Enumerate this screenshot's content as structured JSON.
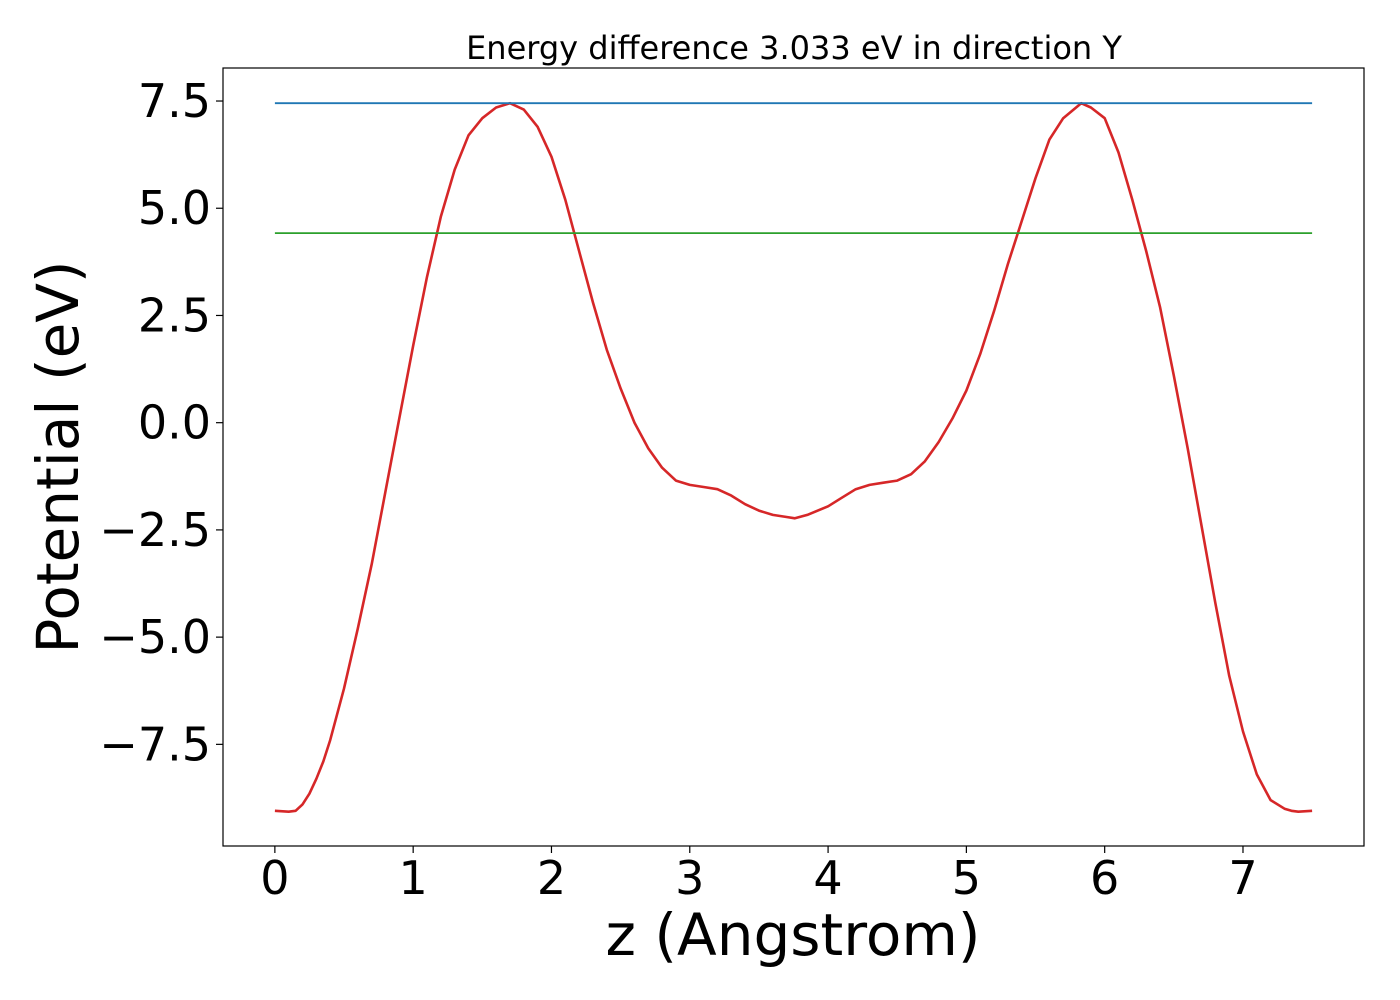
{
  "chart_data": {
    "type": "line",
    "title": "Energy difference 3.033 eV in direction Y",
    "xlabel": "z (Angstrom)",
    "ylabel": "Potential (eV)",
    "xlim": [
      -0.375,
      7.875
    ],
    "ylim": [
      -9.87,
      8.27
    ],
    "xticks": [
      {
        "value": 0,
        "label": "0"
      },
      {
        "value": 1,
        "label": "1"
      },
      {
        "value": 2,
        "label": "2"
      },
      {
        "value": 3,
        "label": "3"
      },
      {
        "value": 4,
        "label": "4"
      },
      {
        "value": 5,
        "label": "5"
      },
      {
        "value": 6,
        "label": "6"
      },
      {
        "value": 7,
        "label": "7"
      }
    ],
    "yticks": [
      {
        "value": -7.5,
        "label": "−7.5"
      },
      {
        "value": -5.0,
        "label": "−5.0"
      },
      {
        "value": -2.5,
        "label": "−2.5"
      },
      {
        "value": 0.0,
        "label": "0.0"
      },
      {
        "value": 2.5,
        "label": "2.5"
      },
      {
        "value": 5.0,
        "label": "5.0"
      },
      {
        "value": 7.5,
        "label": "7.5"
      }
    ],
    "grid": false,
    "legend": "none",
    "series": [
      {
        "color": "#d62728",
        "x": [
          0.0,
          0.1,
          0.15,
          0.2,
          0.25,
          0.3,
          0.35,
          0.4,
          0.45,
          0.5,
          0.55,
          0.6,
          0.7,
          0.8,
          0.9,
          1.0,
          1.1,
          1.2,
          1.3,
          1.4,
          1.5,
          1.6,
          1.7,
          1.8,
          1.9,
          2.0,
          2.1,
          2.2,
          2.3,
          2.4,
          2.5,
          2.6,
          2.7,
          2.8,
          2.9,
          3.0,
          3.1,
          3.2,
          3.3,
          3.4,
          3.5,
          3.6,
          3.7,
          3.76,
          3.85,
          4.0,
          4.1,
          4.2,
          4.3,
          4.4,
          4.5,
          4.6,
          4.7,
          4.8,
          4.9,
          5.0,
          5.1,
          5.2,
          5.3,
          5.4,
          5.5,
          5.6,
          5.7,
          5.83,
          5.9,
          6.0,
          6.1,
          6.2,
          6.3,
          6.4,
          6.5,
          6.6,
          6.7,
          6.8,
          6.9,
          7.0,
          7.1,
          7.2,
          7.3,
          7.35,
          7.4,
          7.5
        ],
        "y": [
          -9.05,
          -9.07,
          -9.05,
          -8.9,
          -8.65,
          -8.3,
          -7.9,
          -7.4,
          -6.8,
          -6.2,
          -5.5,
          -4.8,
          -3.3,
          -1.6,
          0.1,
          1.8,
          3.4,
          4.8,
          5.9,
          6.7,
          7.1,
          7.35,
          7.45,
          7.3,
          6.9,
          6.2,
          5.2,
          4.0,
          2.8,
          1.7,
          0.8,
          0.0,
          -0.6,
          -1.05,
          -1.35,
          -1.45,
          -1.5,
          -1.55,
          -1.7,
          -1.9,
          -2.05,
          -2.15,
          -2.2,
          -2.23,
          -2.15,
          -1.95,
          -1.75,
          -1.55,
          -1.45,
          -1.4,
          -1.35,
          -1.2,
          -0.9,
          -0.45,
          0.1,
          0.75,
          1.6,
          2.6,
          3.7,
          4.7,
          5.7,
          6.6,
          7.1,
          7.45,
          7.35,
          7.1,
          6.3,
          5.2,
          4.0,
          2.7,
          1.1,
          -0.6,
          -2.4,
          -4.2,
          -5.9,
          -7.2,
          -8.2,
          -8.8,
          -9.0,
          -9.05,
          -9.07,
          -9.05
        ]
      },
      {
        "color": "#1f77b4",
        "x": [
          0.0,
          7.5
        ],
        "y": [
          7.45,
          7.45
        ]
      },
      {
        "color": "#2ca02c",
        "x": [
          0.0,
          7.5
        ],
        "y": [
          4.42,
          4.42
        ]
      }
    ]
  }
}
